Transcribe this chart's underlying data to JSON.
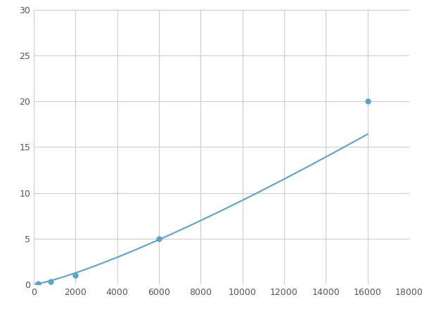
{
  "x_points": [
    200,
    800,
    2000,
    6000,
    16000
  ],
  "y_points": [
    0.1,
    0.3,
    1.0,
    5.0,
    20.0
  ],
  "line_color": "#5ba3c9",
  "marker_color": "#5ba3c9",
  "marker_size": 5,
  "marker_style": "o",
  "line_width": 1.5,
  "xlim": [
    0,
    18000
  ],
  "ylim": [
    0,
    30
  ],
  "xticks": [
    0,
    2000,
    4000,
    6000,
    8000,
    10000,
    12000,
    14000,
    16000,
    18000
  ],
  "yticks": [
    0,
    5,
    10,
    15,
    20,
    25,
    30
  ],
  "grid_color": "#cccccc",
  "grid_linewidth": 0.8,
  "background_color": "#ffffff",
  "figsize": [
    6.0,
    4.5
  ],
  "dpi": 100
}
